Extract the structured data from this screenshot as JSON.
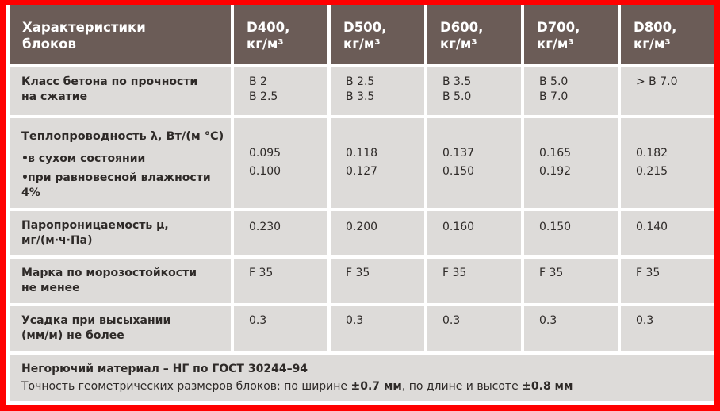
{
  "header": {
    "col0": [
      "Характеристики",
      "блоков"
    ],
    "cols": [
      [
        "D400,",
        "кг/м³"
      ],
      [
        "D500,",
        "кг/м³"
      ],
      [
        "D600,",
        "кг/м³"
      ],
      [
        "D700,",
        "кг/м³"
      ],
      [
        "D800,",
        "кг/м³"
      ]
    ]
  },
  "rows": {
    "strength": {
      "label": [
        "Класс бетона по прочности",
        "на сжатие"
      ],
      "values": [
        [
          "B 2",
          "B 2.5"
        ],
        [
          "B 2.5",
          "B 3.5"
        ],
        [
          "B 3.5",
          "B 5.0"
        ],
        [
          "B 5.0",
          "B 7.0"
        ],
        [
          "> B 7.0",
          ""
        ]
      ]
    },
    "thermal": {
      "label_main": "Теплопроводность λ, Вт/(м °С)",
      "bullet": "•",
      "label_dry": "в сухом состоянии",
      "label_humid": "при равновесной влажности 4%",
      "values": [
        [
          "0.095",
          "0.100"
        ],
        [
          "0.118",
          "0.127"
        ],
        [
          "0.137",
          "0.150"
        ],
        [
          "0.165",
          "0.192"
        ],
        [
          "0.182",
          "0.215"
        ]
      ]
    },
    "vapor": {
      "label": [
        "Паропроницаемость μ,",
        "мг/(м·ч·Па)"
      ],
      "values": [
        "0.230",
        "0.200",
        "0.160",
        "0.150",
        "0.140"
      ]
    },
    "frost": {
      "label": [
        "Марка по морозостойкости",
        "не менее"
      ],
      "values": [
        "F 35",
        "F 35",
        "F 35",
        "F 35",
        "F 35"
      ]
    },
    "shrink": {
      "label": [
        "Усадка при высыхании",
        "(мм/м) не более"
      ],
      "values": [
        "0.3",
        "0.3",
        "0.3",
        "0.3",
        "0.3"
      ]
    }
  },
  "footer": {
    "line1": "Негорючий материал – НГ по ГОСТ 30244–94",
    "line2_a": "Точность геометрических размеров блоков: по ширине ",
    "line2_b": "±0.7 мм",
    "line2_c": ", по длине и высоте ",
    "line2_d": "±0.8 мм"
  }
}
